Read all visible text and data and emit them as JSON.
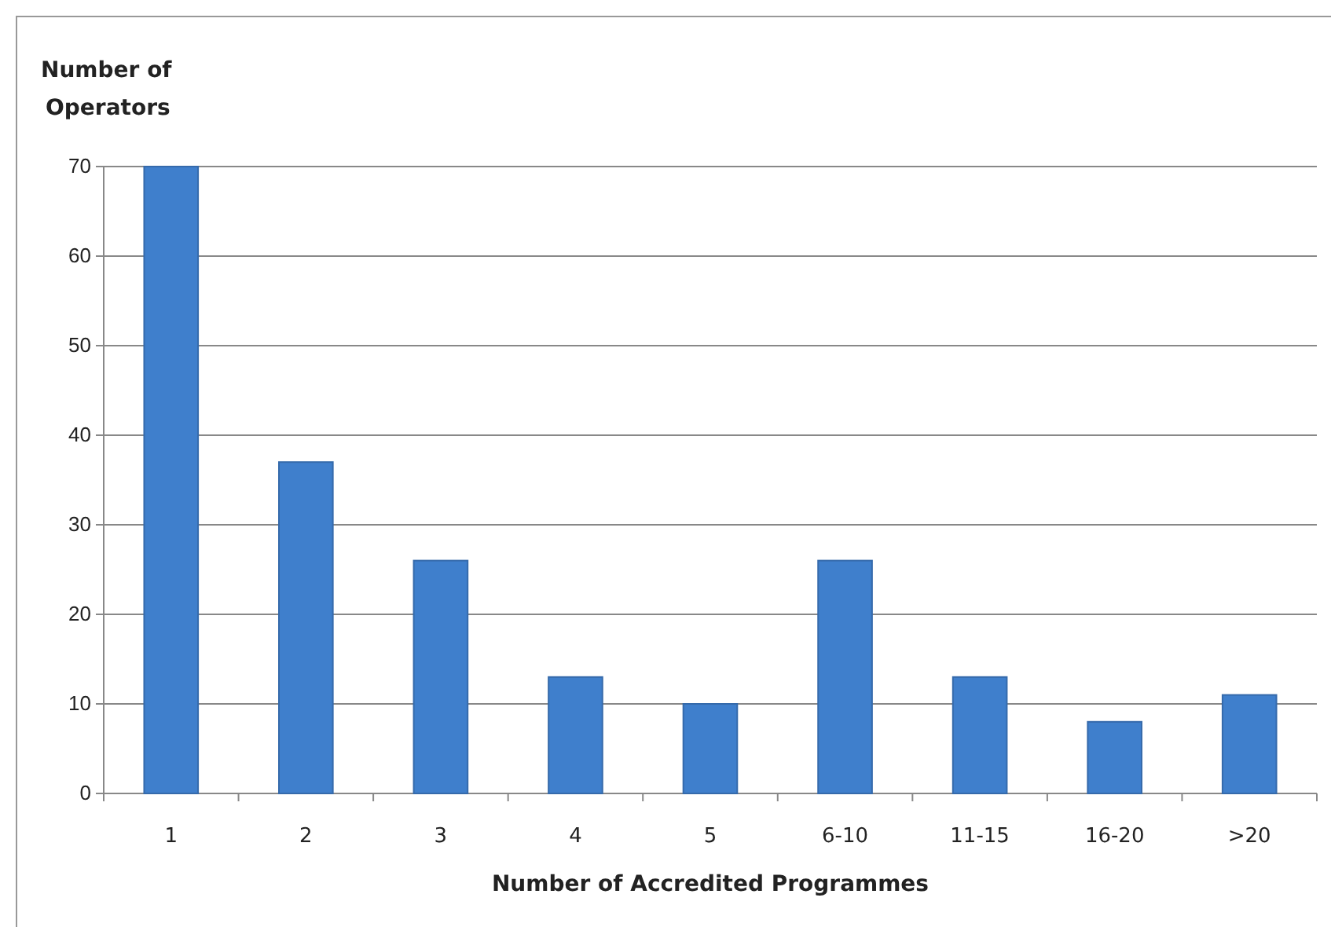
{
  "chart_data": {
    "type": "bar",
    "categories": [
      "1",
      "2",
      "3",
      "4",
      "5",
      "6-10",
      "11-15",
      "16-20",
      ">20"
    ],
    "values": [
      70,
      37,
      26,
      13,
      10,
      26,
      13,
      8,
      11
    ],
    "color": "#3f7fcc",
    "xlabel": "Number of Accredited Programmes",
    "ylabel": "Number of Operators",
    "ylim": [
      0,
      70
    ],
    "yticks": [
      0,
      10,
      20,
      30,
      40,
      50,
      60,
      70
    ],
    "grid": "y"
  }
}
